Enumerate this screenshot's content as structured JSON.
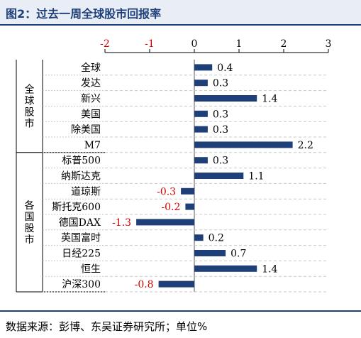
{
  "title": "图2：过去一周全球股市回报率",
  "source": "数据来源：彭博、东吴证券研究所；单位%",
  "colors": {
    "bar": "#1f3f78",
    "negative_label": "#d40000",
    "axis_label": "#d40000",
    "grid": "#c8c8c8",
    "title_bg": "#e9eef6"
  },
  "chart_data": {
    "type": "bar",
    "orientation": "horizontal",
    "xlim": [
      -2,
      3
    ],
    "ticks": [
      -2,
      -1,
      0,
      1,
      2,
      3
    ],
    "tick_labels": [
      "-2",
      "-1",
      "0",
      "1",
      "2",
      "3"
    ],
    "groups": [
      {
        "label": "全球股市",
        "categories": [
          "全球",
          "发达",
          "新兴",
          "美国",
          "除美国",
          "M7"
        ],
        "values": [
          0.4,
          0.3,
          1.4,
          0.3,
          0.3,
          2.2
        ],
        "labels": [
          "0.4",
          "0.3",
          "1.4",
          "0.3",
          "0.3",
          "2.2"
        ]
      },
      {
        "label": "各国股市",
        "categories": [
          "标普500",
          "纳斯达克",
          "道琼斯",
          "斯托克600",
          "德国DAX",
          "英国富时",
          "日经225",
          "恒生",
          "沪深300"
        ],
        "values": [
          0.3,
          1.1,
          -0.3,
          -0.2,
          -1.3,
          0.2,
          0.7,
          1.4,
          -0.8
        ],
        "labels": [
          "0.3",
          "1.1",
          "-0.3",
          "-0.2",
          "-1.3",
          "0.2",
          "0.7",
          "1.4",
          "-0.8"
        ]
      }
    ]
  }
}
